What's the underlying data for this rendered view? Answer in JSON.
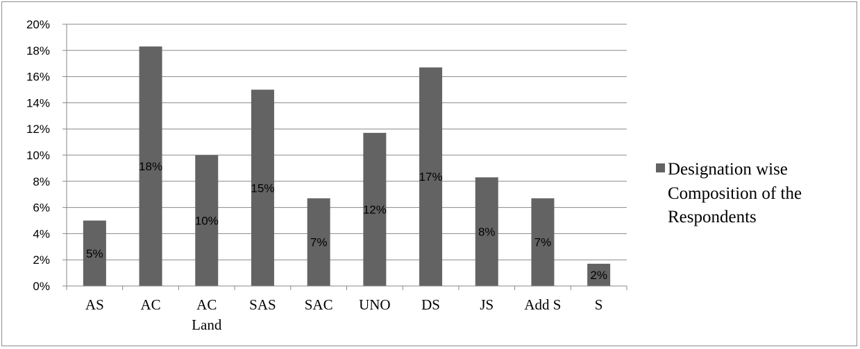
{
  "chart_data": {
    "type": "bar",
    "categories": [
      "AS",
      "AC",
      "AC Land",
      "SAS",
      "SAC",
      "UNO",
      "DS",
      "JS",
      "Add S",
      "S"
    ],
    "series": [
      {
        "name": "Designation wise Composition of the Respondents",
        "values": [
          5,
          18.3,
          10,
          15,
          6.7,
          11.7,
          16.7,
          8.3,
          6.7,
          1.7
        ],
        "labels": [
          "5%",
          "18%",
          "10%",
          "15%",
          "7%",
          "12%",
          "17%",
          "8%",
          "7%",
          "2%"
        ],
        "color": "#636363"
      }
    ],
    "ylim": [
      0,
      20
    ],
    "yticks": [
      0,
      2,
      4,
      6,
      8,
      10,
      12,
      14,
      16,
      18,
      20
    ],
    "ytick_format": "%",
    "grid": true,
    "legend_position": "right",
    "legend_lines": [
      "Designation wise",
      "Composition of the",
      "Respondents"
    ]
  }
}
